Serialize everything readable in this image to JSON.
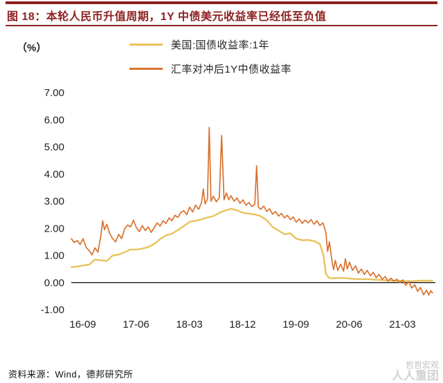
{
  "header": {
    "title": "图 18：本轮人民币升值周期，1Y 中债美元收益率已经低至负值"
  },
  "footer": {
    "source": "资料来源：Wind，德邦研究所"
  },
  "watermark": {
    "lines": [
      "哲哲宏观",
      "人人重团"
    ]
  },
  "colors": {
    "title_red": "#8e2020",
    "us_yield_yellow": "#e9c25a",
    "hedged_orange": "#d9712c",
    "zero_axis": "#000000"
  },
  "chart_data": {
    "type": "line",
    "title": "本轮人民币升值周期，1Y中债美元收益率已经低至负值",
    "ylabel": "（%）",
    "xlabel": "",
    "x_unit": "months since 2016-09",
    "grid": false,
    "legend_position": "top-center",
    "xlim": [
      -1,
      60.5
    ],
    "ylim": [
      -1,
      7
    ],
    "yticks": [
      7,
      6,
      5,
      4,
      3,
      2,
      1,
      0,
      -1
    ],
    "xticks": [
      {
        "x": 0,
        "label": "16-09"
      },
      {
        "x": 9,
        "label": "17-06"
      },
      {
        "x": 18,
        "label": "18-03"
      },
      {
        "x": 27,
        "label": "18-12"
      },
      {
        "x": 36,
        "label": "19-09"
      },
      {
        "x": 45,
        "label": "20-06"
      },
      {
        "x": 54,
        "label": "21-03"
      }
    ],
    "series": [
      {
        "name": "美国:国债收益率:1年",
        "color": "#e9c25a",
        "width": 2.4,
        "points": [
          [
            -1,
            0.57
          ],
          [
            0,
            0.59
          ],
          [
            1,
            0.63
          ],
          [
            2,
            0.66
          ],
          [
            3,
            0.85
          ],
          [
            4,
            0.82
          ],
          [
            5,
            0.8
          ],
          [
            6,
            1.0
          ],
          [
            7,
            1.03
          ],
          [
            8,
            1.12
          ],
          [
            9,
            1.22
          ],
          [
            10,
            1.22
          ],
          [
            11,
            1.25
          ],
          [
            12,
            1.31
          ],
          [
            13,
            1.42
          ],
          [
            14,
            1.6
          ],
          [
            15,
            1.74
          ],
          [
            16,
            1.8
          ],
          [
            17,
            1.94
          ],
          [
            18,
            2.08
          ],
          [
            19,
            2.24
          ],
          [
            20,
            2.28
          ],
          [
            21,
            2.33
          ],
          [
            22,
            2.4
          ],
          [
            23,
            2.45
          ],
          [
            24,
            2.57
          ],
          [
            25,
            2.66
          ],
          [
            26,
            2.72
          ],
          [
            27,
            2.66
          ],
          [
            28,
            2.57
          ],
          [
            29,
            2.54
          ],
          [
            30,
            2.51
          ],
          [
            31,
            2.45
          ],
          [
            32,
            2.3
          ],
          [
            33,
            2.05
          ],
          [
            34,
            1.92
          ],
          [
            35,
            1.78
          ],
          [
            36,
            1.82
          ],
          [
            37,
            1.62
          ],
          [
            38,
            1.56
          ],
          [
            39,
            1.57
          ],
          [
            40,
            1.53
          ],
          [
            41,
            1.42
          ],
          [
            41.6,
            1.0
          ],
          [
            42,
            0.32
          ],
          [
            42.5,
            0.18
          ],
          [
            43,
            0.16
          ],
          [
            44,
            0.17
          ],
          [
            45,
            0.17
          ],
          [
            46,
            0.15
          ],
          [
            47,
            0.13
          ],
          [
            48,
            0.12
          ],
          [
            49,
            0.13
          ],
          [
            50,
            0.11
          ],
          [
            51,
            0.1
          ],
          [
            52,
            0.08
          ],
          [
            53,
            0.07
          ],
          [
            54,
            0.07
          ],
          [
            55,
            0.06
          ],
          [
            56,
            0.05
          ],
          [
            57,
            0.06
          ],
          [
            58,
            0.07
          ],
          [
            59,
            0.07
          ],
          [
            60,
            0.07
          ]
        ]
      },
      {
        "name": "汇率对冲后1Y中债收益率",
        "color": "#d9712c",
        "width": 1.7,
        "points": [
          [
            -1,
            1.62
          ],
          [
            -0.5,
            1.48
          ],
          [
            0,
            1.55
          ],
          [
            0.5,
            1.4
          ],
          [
            1,
            1.62
          ],
          [
            1.5,
            1.3
          ],
          [
            2,
            1.18
          ],
          [
            2.5,
            1.02
          ],
          [
            3,
            1.28
          ],
          [
            3.5,
            1.12
          ],
          [
            4,
            1.75
          ],
          [
            4.3,
            2.28
          ],
          [
            4.6,
            1.95
          ],
          [
            5,
            2.15
          ],
          [
            5.5,
            1.8
          ],
          [
            6,
            1.62
          ],
          [
            6.5,
            1.5
          ],
          [
            7,
            1.78
          ],
          [
            7.5,
            1.62
          ],
          [
            8,
            1.98
          ],
          [
            8.5,
            2.12
          ],
          [
            9,
            2.05
          ],
          [
            9.5,
            2.3
          ],
          [
            10,
            2.02
          ],
          [
            10.5,
            1.88
          ],
          [
            11,
            2.1
          ],
          [
            11.5,
            1.92
          ],
          [
            12,
            2.05
          ],
          [
            12.5,
            1.85
          ],
          [
            13,
            2.02
          ],
          [
            13.5,
            2.2
          ],
          [
            14,
            2.08
          ],
          [
            14.5,
            2.28
          ],
          [
            15,
            2.18
          ],
          [
            15.5,
            2.38
          ],
          [
            16,
            2.28
          ],
          [
            16.5,
            2.48
          ],
          [
            17,
            2.4
          ],
          [
            17.5,
            2.58
          ],
          [
            18,
            2.65
          ],
          [
            18.5,
            2.5
          ],
          [
            19,
            2.78
          ],
          [
            19.5,
            2.6
          ],
          [
            20,
            2.85
          ],
          [
            20.5,
            2.7
          ],
          [
            21,
            2.95
          ],
          [
            21.3,
            3.45
          ],
          [
            21.6,
            2.9
          ],
          [
            22,
            3.08
          ],
          [
            22.3,
            5.72
          ],
          [
            22.6,
            3.0
          ],
          [
            23,
            3.18
          ],
          [
            23.5,
            2.98
          ],
          [
            24,
            3.12
          ],
          [
            24.4,
            5.42
          ],
          [
            24.8,
            3.05
          ],
          [
            25.2,
            3.3
          ],
          [
            25.6,
            3.05
          ],
          [
            26,
            3.2
          ],
          [
            26.5,
            3.0
          ],
          [
            27,
            3.12
          ],
          [
            27.5,
            2.92
          ],
          [
            28,
            3.05
          ],
          [
            28.5,
            2.85
          ],
          [
            29,
            2.95
          ],
          [
            29.5,
            2.8
          ],
          [
            30,
            2.88
          ],
          [
            30.3,
            4.3
          ],
          [
            30.6,
            2.78
          ],
          [
            31,
            2.7
          ],
          [
            31.5,
            2.82
          ],
          [
            32,
            2.62
          ],
          [
            32.5,
            2.72
          ],
          [
            33,
            2.52
          ],
          [
            33.5,
            2.62
          ],
          [
            34,
            2.45
          ],
          [
            34.5,
            2.55
          ],
          [
            35,
            2.38
          ],
          [
            35.5,
            2.48
          ],
          [
            36,
            2.32
          ],
          [
            36.5,
            2.42
          ],
          [
            37,
            2.22
          ],
          [
            37.5,
            2.35
          ],
          [
            38,
            2.18
          ],
          [
            38.5,
            2.3
          ],
          [
            39,
            2.2
          ],
          [
            39.5,
            2.32
          ],
          [
            40,
            2.15
          ],
          [
            40.5,
            2.28
          ],
          [
            41,
            2.1
          ],
          [
            41.5,
            2.2
          ],
          [
            42,
            1.85
          ],
          [
            42.3,
            1.15
          ],
          [
            42.6,
            1.5
          ],
          [
            43,
            0.85
          ],
          [
            43.3,
            0.48
          ],
          [
            43.6,
            0.82
          ],
          [
            44,
            0.45
          ],
          [
            44.5,
            0.68
          ],
          [
            45,
            0.42
          ],
          [
            45.3,
            0.88
          ],
          [
            45.6,
            0.5
          ],
          [
            46,
            0.75
          ],
          [
            46.5,
            0.45
          ],
          [
            47,
            0.62
          ],
          [
            47.5,
            0.35
          ],
          [
            48,
            0.5
          ],
          [
            48.5,
            0.3
          ],
          [
            49,
            0.45
          ],
          [
            49.5,
            0.25
          ],
          [
            50,
            0.38
          ],
          [
            50.5,
            0.18
          ],
          [
            51,
            0.3
          ],
          [
            51.5,
            0.12
          ],
          [
            52,
            0.22
          ],
          [
            52.5,
            0.06
          ],
          [
            53,
            0.16
          ],
          [
            53.5,
            0.05
          ],
          [
            54,
            0.12
          ],
          [
            54.5,
            0.0
          ],
          [
            55,
            0.1
          ],
          [
            55.5,
            -0.1
          ],
          [
            56,
            0.04
          ],
          [
            56.5,
            -0.2
          ],
          [
            57,
            -0.08
          ],
          [
            57.5,
            -0.32
          ],
          [
            58,
            -0.18
          ],
          [
            58.5,
            -0.45
          ],
          [
            59,
            -0.28
          ],
          [
            59.4,
            -0.46
          ],
          [
            59.7,
            -0.3
          ],
          [
            60,
            -0.38
          ]
        ]
      }
    ]
  }
}
